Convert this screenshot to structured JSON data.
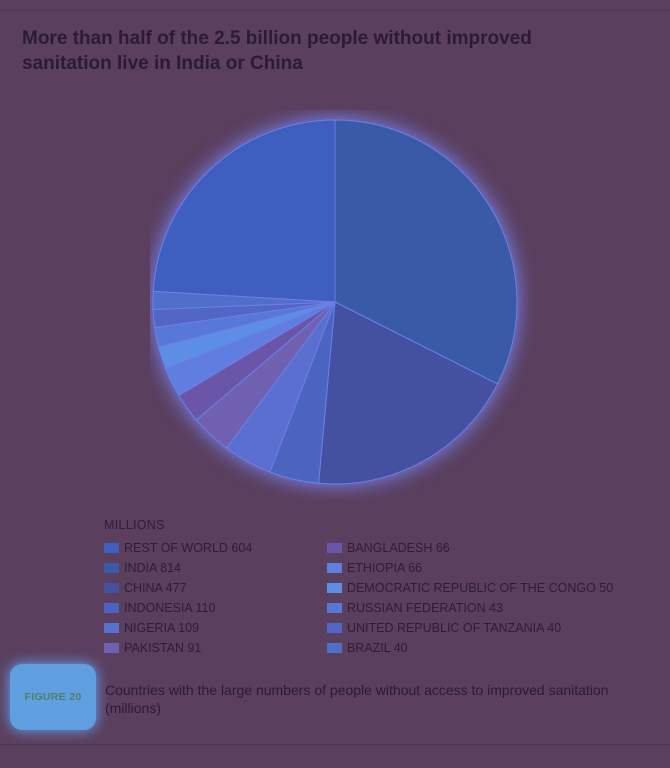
{
  "chart_data": {
    "type": "pie",
    "title": "More than half of the 2.5 billion people without improved sanitation live in India or China",
    "legend_title": "MILLIONS",
    "slices": [
      {
        "label": "INDIA",
        "value": 814,
        "color": "#3a5aa8"
      },
      {
        "label": "CHINA",
        "value": 477,
        "color": "#4450a0"
      },
      {
        "label": "INDONESIA",
        "value": 110,
        "color": "#4b64bf"
      },
      {
        "label": "NIGERIA",
        "value": 109,
        "color": "#5a6fd0"
      },
      {
        "label": "PAKISTAN",
        "value": 91,
        "color": "#7060b0"
      },
      {
        "label": "BANGLADESH",
        "value": 66,
        "color": "#6a55a8"
      },
      {
        "label": "ETHIOPIA",
        "value": 66,
        "color": "#5f7ee0"
      },
      {
        "label": "DEMOCRATIC REPUBLIC OF THE CONGO",
        "value": 50,
        "color": "#5d8ee6"
      },
      {
        "label": "RUSSIAN FEDERATION",
        "value": 43,
        "color": "#5778d8"
      },
      {
        "label": "UNITED REPUBLIC OF TANZANIA",
        "value": 40,
        "color": "#5266c6"
      },
      {
        "label": "BRAZIL",
        "value": 40,
        "color": "#4f6fc8"
      },
      {
        "label": "REST OF WORLD",
        "value": 604,
        "color": "#3e5ec0"
      }
    ],
    "legend_columns": [
      [
        "REST OF WORLD",
        "INDIA",
        "CHINA",
        "INDONESIA",
        "NIGERIA",
        "PAKISTAN"
      ],
      [
        "BANGLADESH",
        "ETHIOPIA",
        "DEMOCRATIC REPUBLIC OF THE CONGO",
        "RUSSIAN FEDERATION",
        "UNITED REPUBLIC OF TANZANIA",
        "BRAZIL"
      ]
    ]
  },
  "figure": {
    "badge": "FIGURE 20",
    "caption": "Countries with the large numbers of people without access to improved sanitation (millions)"
  }
}
